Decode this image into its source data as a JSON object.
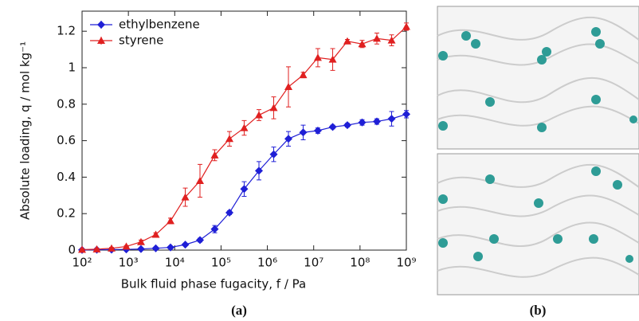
{
  "chart_data": {
    "type": "line",
    "xscale": "log",
    "xlabel": "Bulk fluid phase fugacity, f / Pa",
    "ylabel": "Absolute loading, q / mol kg⁻¹",
    "x": [
      100,
      208,
      433,
      901,
      1870,
      3900,
      8110,
      16900,
      35100,
      73000,
      152000,
      316000,
      658000,
      1370000,
      2850000,
      5930000,
      12300000,
      25700000,
      53300000,
      111000000,
      231000000,
      481000000,
      1000000000
    ],
    "series": [
      {
        "name": "ethylbenzene",
        "color": "#1f1fd6",
        "marker": "diamond",
        "values": [
          0.001,
          0.002,
          0.003,
          0.004,
          0.006,
          0.01,
          0.015,
          0.03,
          0.055,
          0.115,
          0.205,
          0.335,
          0.435,
          0.525,
          0.61,
          0.645,
          0.655,
          0.675,
          0.685,
          0.7,
          0.705,
          0.72,
          0.745
        ],
        "errors": [
          0.005,
          0.005,
          0.005,
          0.005,
          0.005,
          0.005,
          0.005,
          0.005,
          0.01,
          0.02,
          0.01,
          0.04,
          0.05,
          0.04,
          0.04,
          0.04,
          0.015,
          0.01,
          0.01,
          0.015,
          0.015,
          0.04,
          0.02
        ]
      },
      {
        "name": "styrene",
        "color": "#e02020",
        "marker": "triangle",
        "values": [
          0.003,
          0.005,
          0.01,
          0.02,
          0.045,
          0.085,
          0.16,
          0.29,
          0.38,
          0.52,
          0.61,
          0.67,
          0.74,
          0.78,
          0.895,
          0.96,
          1.055,
          1.045,
          1.145,
          1.13,
          1.16,
          1.15,
          1.225
        ],
        "errors": [
          0.005,
          0.005,
          0.005,
          0.005,
          0.01,
          0.01,
          0.015,
          0.05,
          0.09,
          0.03,
          0.04,
          0.04,
          0.03,
          0.06,
          0.11,
          0.015,
          0.05,
          0.06,
          0.01,
          0.02,
          0.03,
          0.03,
          0.02
        ]
      }
    ],
    "xlim": [
      100,
      1000000000
    ],
    "xticks": [
      {
        "value": 100,
        "label": "10²"
      },
      {
        "value": 1000,
        "label": "10³"
      },
      {
        "value": 10000,
        "label": "10⁴"
      },
      {
        "value": 100000,
        "label": "10⁵"
      },
      {
        "value": 1000000,
        "label": "10⁶"
      },
      {
        "value": 10000000,
        "label": "10⁷"
      },
      {
        "value": 100000000,
        "label": "10⁸"
      },
      {
        "value": 1000000000,
        "label": "10⁹"
      }
    ],
    "ylim": [
      0,
      1.31
    ],
    "yticks": [
      0,
      0.2,
      0.4,
      0.6,
      0.8,
      1,
      1.2
    ],
    "legend": "upper-left",
    "panel_label": "(a)"
  },
  "image_panel": {
    "panel_label": "(b)"
  }
}
